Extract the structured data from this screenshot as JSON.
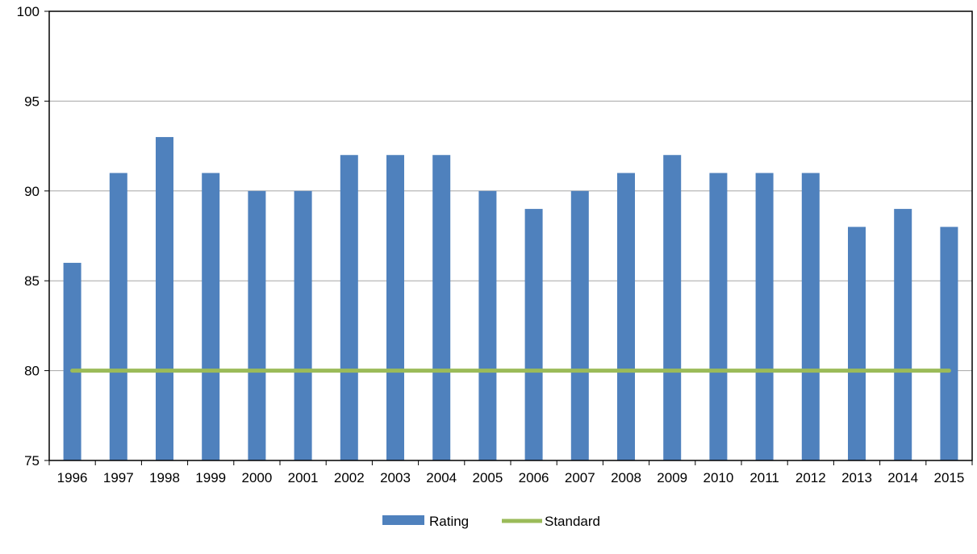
{
  "chart_data": {
    "type": "bar",
    "title": "",
    "xlabel": "",
    "ylabel": "",
    "categories": [
      "1996",
      "1997",
      "1998",
      "1999",
      "2000",
      "2001",
      "2002",
      "2003",
      "2004",
      "2005",
      "2006",
      "2007",
      "2008",
      "2009",
      "2010",
      "2011",
      "2012",
      "2013",
      "2014",
      "2015"
    ],
    "series": [
      {
        "name": "Rating",
        "kind": "bar",
        "color": "#4F81BD",
        "values": [
          86,
          91,
          93,
          91,
          90,
          90,
          92,
          92,
          92,
          90,
          89,
          90,
          91,
          92,
          91,
          91,
          91,
          88,
          89,
          88
        ]
      },
      {
        "name": "Standard",
        "kind": "line",
        "color": "#9BBB59",
        "values": [
          80,
          80,
          80,
          80,
          80,
          80,
          80,
          80,
          80,
          80,
          80,
          80,
          80,
          80,
          80,
          80,
          80,
          80,
          80,
          80
        ]
      }
    ],
    "ylim": [
      75,
      100
    ],
    "yticks": [
      "75",
      "80",
      "85",
      "90",
      "95",
      "100"
    ],
    "grid": true,
    "legend_position": "bottom"
  }
}
